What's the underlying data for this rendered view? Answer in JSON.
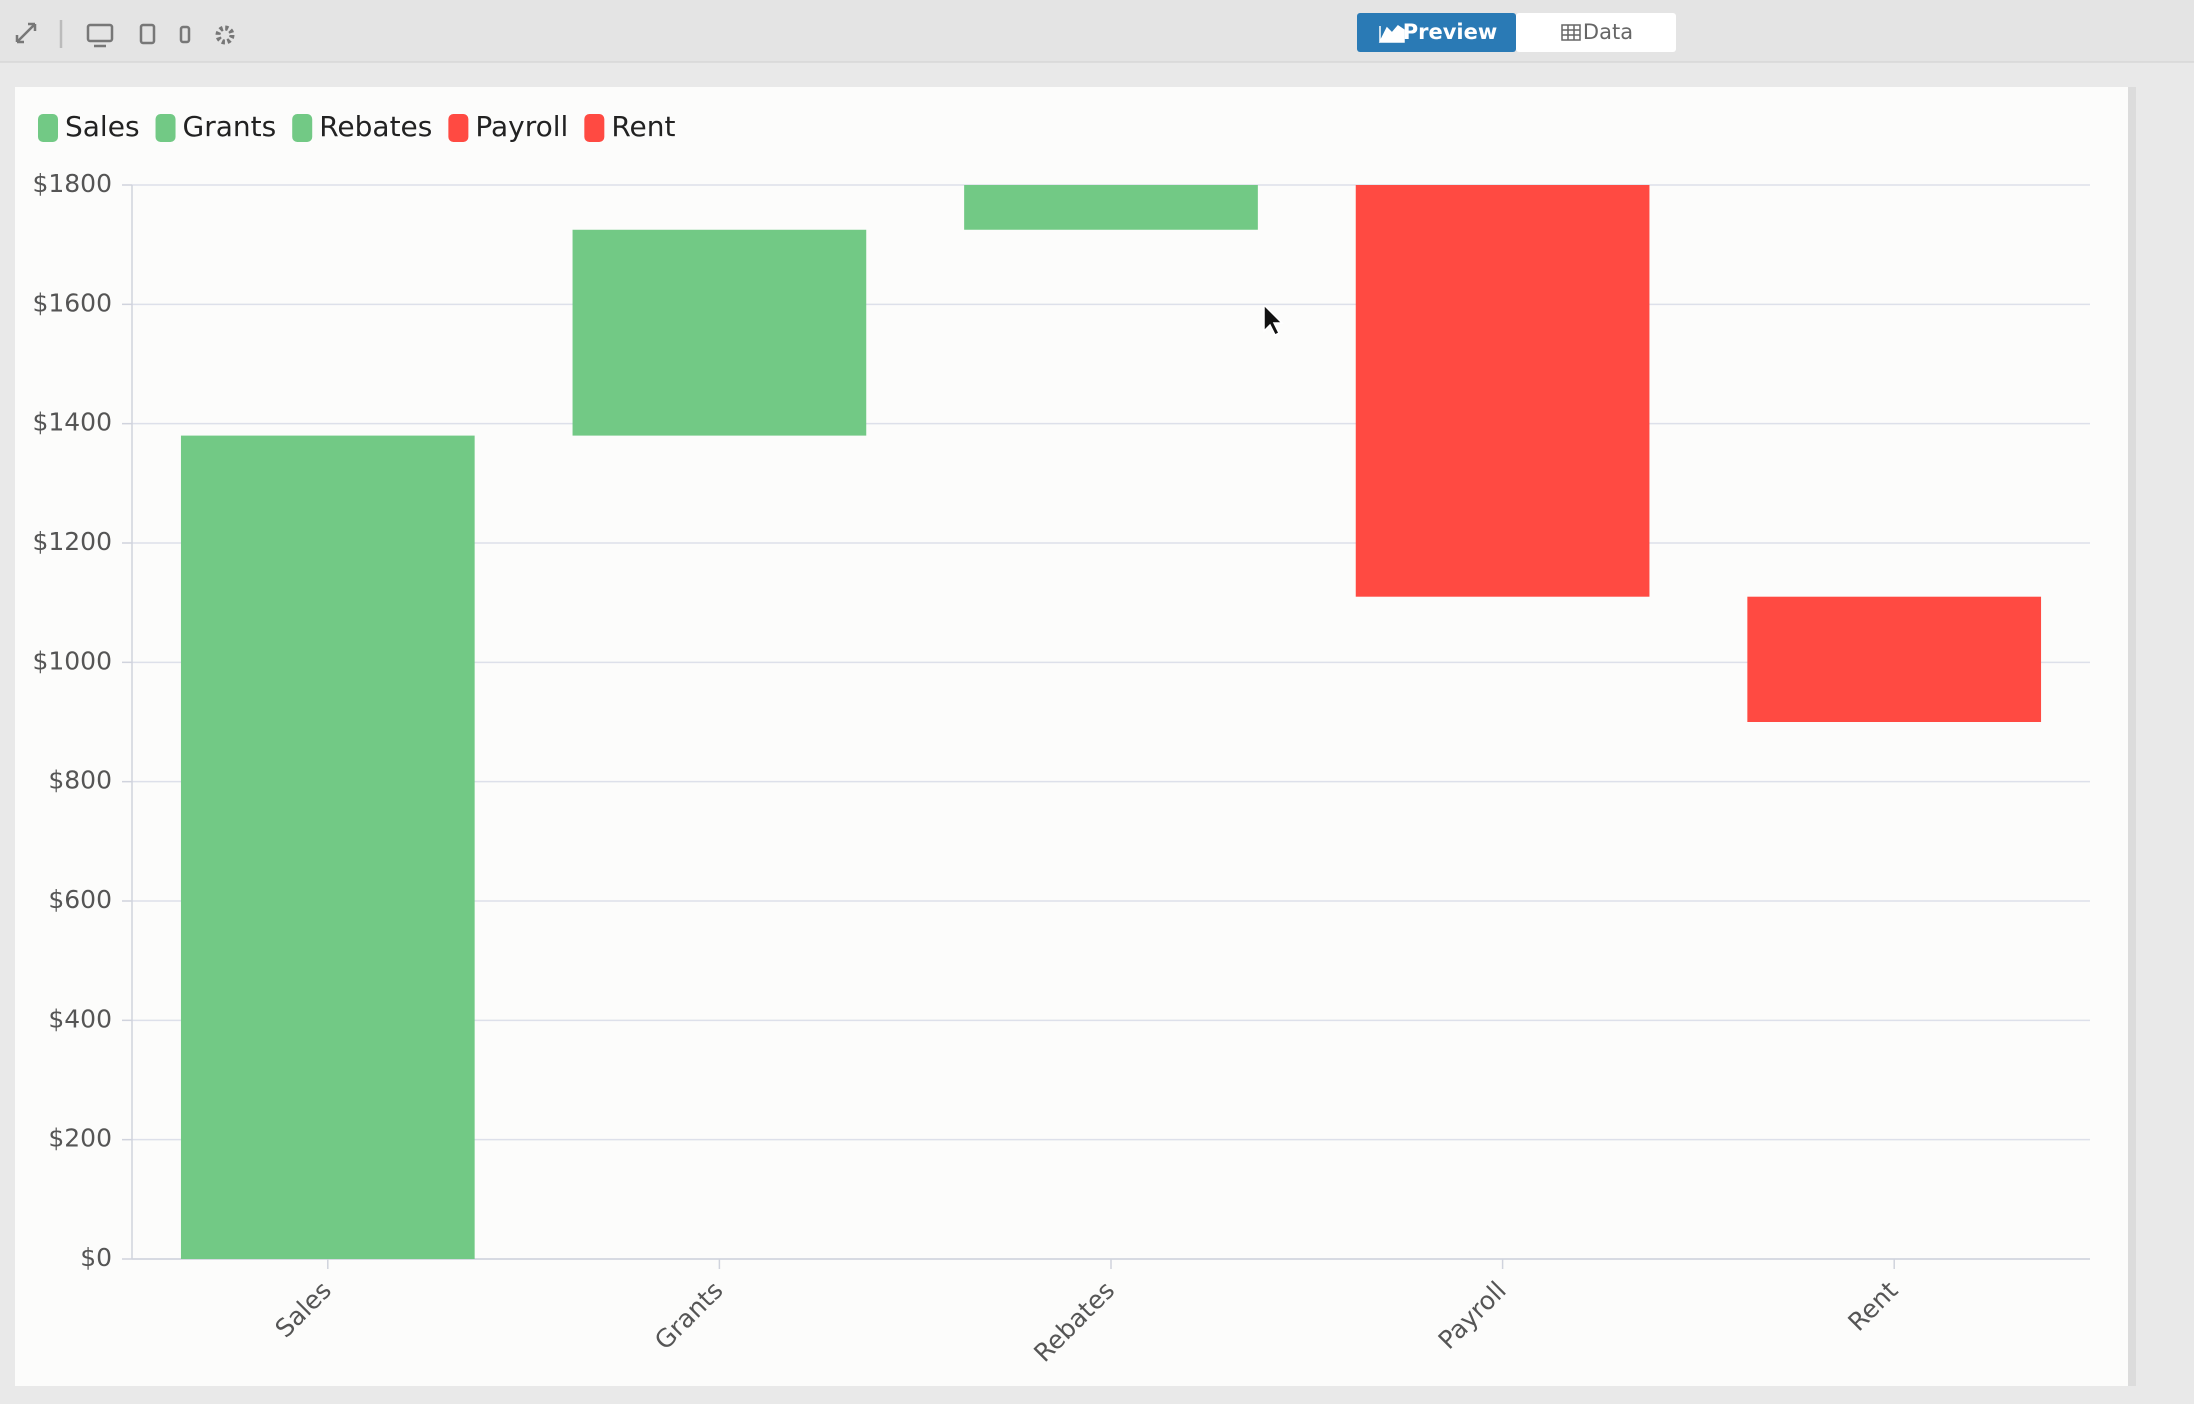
{
  "toolbar": {
    "preview": "Preview",
    "data": "Data"
  },
  "chart_data": {
    "type": "waterfall",
    "categories": [
      "Sales",
      "Grants",
      "Rebates",
      "Payroll",
      "Rent"
    ],
    "values": [
      1380,
      345,
      75,
      -690,
      -210
    ],
    "colors": [
      "#72c985",
      "#72c985",
      "#72c985",
      "#ff4a42",
      "#ff4a42"
    ],
    "ylim": [
      0,
      1800
    ],
    "yticks": [
      {
        "value": 0,
        "label": "$0"
      },
      {
        "value": 200,
        "label": "$200"
      },
      {
        "value": 400,
        "label": "$400"
      },
      {
        "value": 600,
        "label": "$600"
      },
      {
        "value": 800,
        "label": "$800"
      },
      {
        "value": 1000,
        "label": "$1000"
      },
      {
        "value": 1200,
        "label": "$1200"
      },
      {
        "value": 1400,
        "label": "$1400"
      },
      {
        "value": 1600,
        "label": "$1600"
      },
      {
        "value": 1800,
        "label": "$1800"
      }
    ],
    "grid": true,
    "legend": "top-left"
  }
}
